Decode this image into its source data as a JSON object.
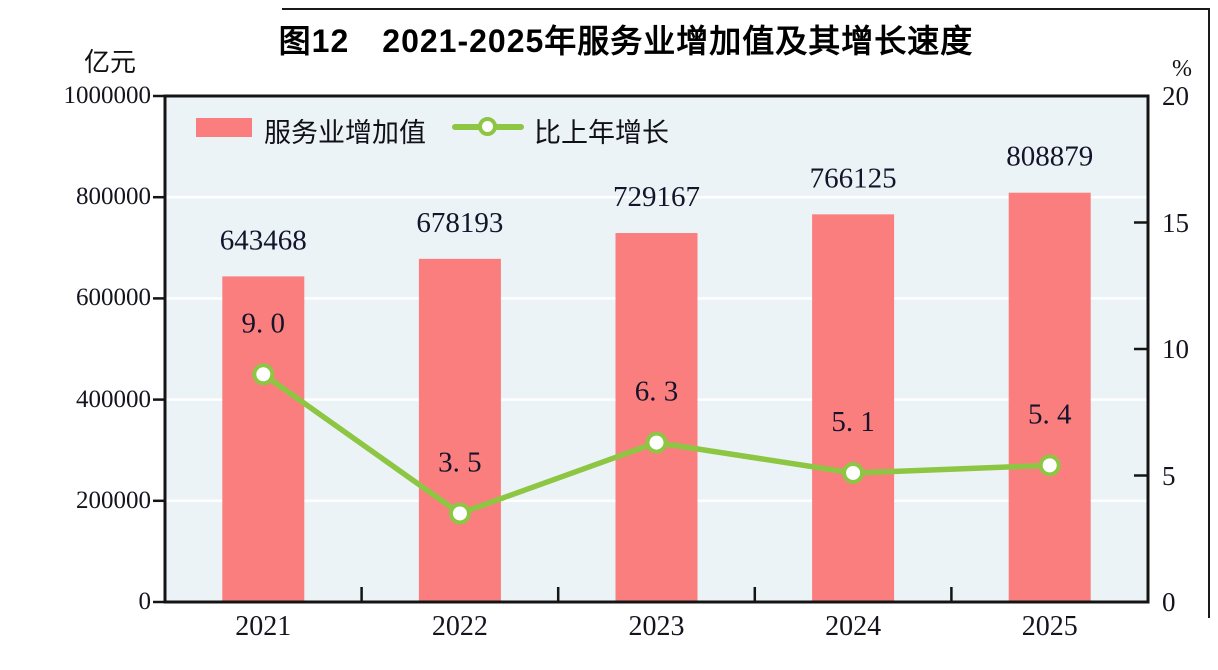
{
  "title": "图12　2021-2025年服务业增加值及其增长速度",
  "left_axis": {
    "unit": "亿元",
    "ticks": [
      "1000000",
      "800000",
      "600000",
      "400000",
      "200000",
      "0"
    ]
  },
  "right_axis": {
    "unit": "%",
    "ticks": [
      "20",
      "15",
      "10",
      "5",
      "0"
    ]
  },
  "chart_data": {
    "type": "bar+line",
    "title": "图12　2021-2025年服务业增加值及其增长速度",
    "categories": [
      "2021",
      "2022",
      "2023",
      "2024",
      "2025"
    ],
    "series": [
      {
        "name": "服务业增加值",
        "type": "bar",
        "axis": "left",
        "unit": "亿元",
        "values": [
          643468,
          678193,
          729167,
          766125,
          808879
        ],
        "labels": [
          "643468",
          "678193",
          "729167",
          "766125",
          "808879"
        ],
        "color": "#FB7E7E"
      },
      {
        "name": "比上年增长",
        "type": "line",
        "axis": "right",
        "unit": "%",
        "values": [
          9.0,
          3.5,
          6.3,
          5.1,
          5.4
        ],
        "labels": [
          "9. 0",
          "3. 5",
          "6. 3",
          "5. 1",
          "5. 4"
        ],
        "color": "#8DC643"
      }
    ],
    "left_ylim": [
      0,
      1000000
    ],
    "right_ylim": [
      0,
      20
    ],
    "gridlines_at_left_values": [
      200000,
      400000,
      600000,
      800000
    ],
    "grid": "horizontal white lines on light blue plot background",
    "legend_position": "top-left inside plot"
  },
  "colors": {
    "plot_bg": "#ECF3F7",
    "gridline": "#FFFFFF",
    "axis": "#141414",
    "label": "#14142A",
    "bar": "#FB7E7E",
    "line": "#8DC643"
  }
}
